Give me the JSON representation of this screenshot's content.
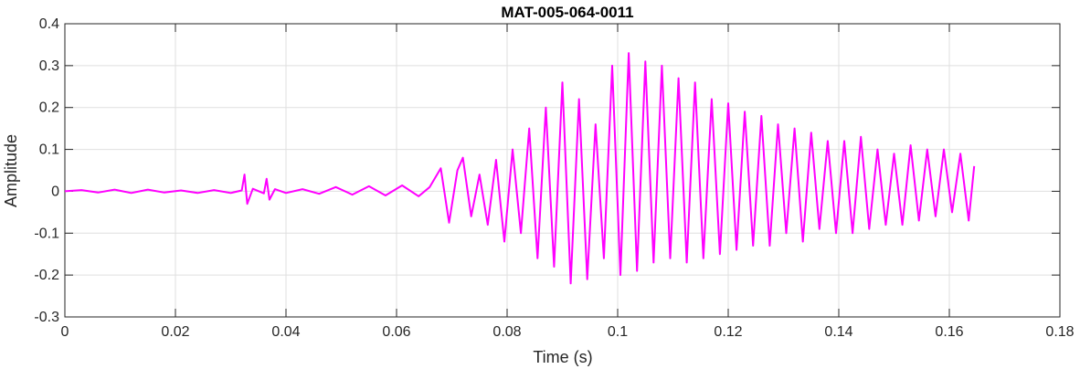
{
  "chart_data": {
    "type": "line",
    "title": "MAT-005-064-0011",
    "xlabel": "Time (s)",
    "ylabel": "Amplitude",
    "xlim": [
      0,
      0.18
    ],
    "ylim": [
      -0.3,
      0.4
    ],
    "xticks": [
      0,
      0.02,
      0.04,
      0.06,
      0.08,
      0.1,
      0.12,
      0.14,
      0.16,
      0.18
    ],
    "xtick_labels": [
      "0",
      "0.02",
      "0.04",
      "0.06",
      "0.08",
      "0.1",
      "0.12",
      "0.14",
      "0.16",
      "0.18"
    ],
    "yticks": [
      -0.3,
      -0.2,
      -0.1,
      0,
      0.1,
      0.2,
      0.3,
      0.4
    ],
    "ytick_labels": [
      "-0.3",
      "-0.2",
      "-0.1",
      "0",
      "0.1",
      "0.2",
      "0.3",
      "0.4"
    ],
    "grid": true,
    "line_color": "#ff00ff",
    "series": [
      {
        "x": [
          0,
          0.003,
          0.006,
          0.009,
          0.012,
          0.015,
          0.018,
          0.021,
          0.024,
          0.027,
          0.03,
          0.032,
          0.0325,
          0.033,
          0.034,
          0.036,
          0.0365,
          0.037,
          0.038,
          0.04,
          0.043,
          0.046,
          0.049,
          0.052,
          0.055,
          0.058,
          0.061,
          0.064,
          0.066,
          0.068,
          0.0695,
          0.071,
          0.072,
          0.0735,
          0.075,
          0.0765,
          0.078,
          0.0795,
          0.081,
          0.0825,
          0.084,
          0.0855,
          0.087,
          0.0885,
          0.09,
          0.0915,
          0.093,
          0.0945,
          0.096,
          0.0975,
          0.099,
          0.1005,
          0.102,
          0.1035,
          0.105,
          0.1065,
          0.108,
          0.1095,
          0.111,
          0.1125,
          0.114,
          0.1155,
          0.117,
          0.1185,
          0.12,
          0.1215,
          0.123,
          0.1245,
          0.126,
          0.1275,
          0.129,
          0.1305,
          0.132,
          0.1335,
          0.135,
          0.1365,
          0.138,
          0.1395,
          0.141,
          0.1425,
          0.144,
          0.1455,
          0.147,
          0.1485,
          0.15,
          0.1515,
          0.153,
          0.1545,
          0.156,
          0.1575,
          0.159,
          0.1605,
          0.162,
          0.1635,
          0.1645
        ],
        "y": [
          0,
          0.003,
          -0.003,
          0.004,
          -0.004,
          0.004,
          -0.003,
          0.002,
          -0.004,
          0.003,
          -0.004,
          0.002,
          0.04,
          -0.03,
          0.006,
          -0.005,
          0.03,
          -0.02,
          0.005,
          -0.004,
          0.005,
          -0.006,
          0.01,
          -0.008,
          0.012,
          -0.01,
          0.014,
          -0.012,
          0.01,
          0.055,
          -0.075,
          0.05,
          0.08,
          -0.06,
          0.04,
          -0.08,
          0.075,
          -0.12,
          0.1,
          -0.1,
          0.15,
          -0.16,
          0.2,
          -0.18,
          0.26,
          -0.22,
          0.22,
          -0.21,
          0.16,
          -0.16,
          0.3,
          -0.2,
          0.33,
          -0.19,
          0.31,
          -0.17,
          0.3,
          -0.16,
          0.27,
          -0.17,
          0.26,
          -0.16,
          0.22,
          -0.15,
          0.21,
          -0.14,
          0.19,
          -0.13,
          0.18,
          -0.13,
          0.16,
          -0.1,
          0.15,
          -0.12,
          0.14,
          -0.09,
          0.12,
          -0.1,
          0.12,
          -0.1,
          0.13,
          -0.09,
          0.1,
          -0.08,
          0.09,
          -0.08,
          0.11,
          -0.07,
          0.1,
          -0.06,
          0.1,
          -0.05,
          0.09,
          -0.07,
          0.06
        ]
      }
    ]
  }
}
